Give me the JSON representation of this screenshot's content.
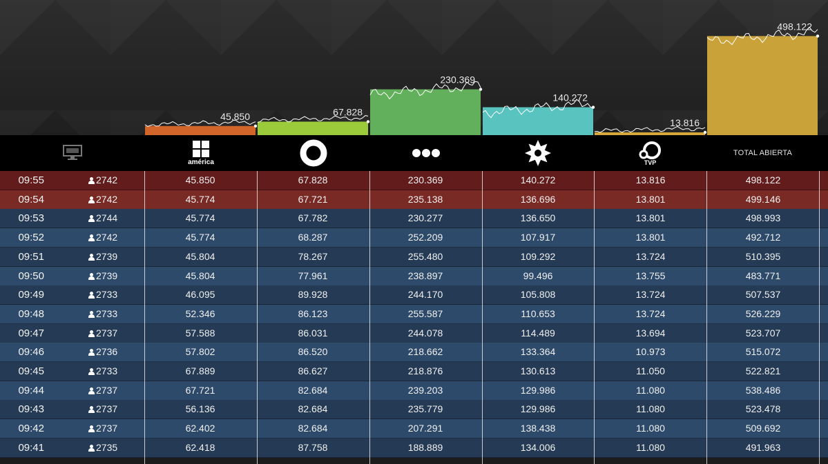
{
  "top_chart": {
    "type": "bar",
    "series_labels": [
      "45.850",
      "67.828",
      "230.369",
      "140.272",
      "13.816",
      "498.122"
    ],
    "values": [
      45.85,
      67.828,
      230.369,
      140.272,
      13.816,
      498.122
    ],
    "colors": [
      "#d2652a",
      "#9bcb3a",
      "#62b05c",
      "#58c3bf",
      "#d6a93a",
      "#c9a23a"
    ]
  },
  "header": {
    "tv_icon": "tv-icon",
    "channels": [
      {
        "icon": "america-logo-icon",
        "text": "américa"
      },
      {
        "icon": "ring-logo-icon",
        "text": ""
      },
      {
        "icon": "three-dots-logo-icon",
        "text": ""
      },
      {
        "icon": "sun-gear-logo-icon",
        "text": ""
      },
      {
        "icon": "tvp-logo-icon",
        "text": "TVP"
      }
    ],
    "total_label": "TOTAL ABIERTA"
  },
  "rows": [
    {
      "time": "09:55",
      "viewers": "2742",
      "v": [
        "45.850",
        "67.828",
        "230.369",
        "140.272",
        "13.816",
        "498.122"
      ]
    },
    {
      "time": "09:54",
      "viewers": "2742",
      "v": [
        "45.774",
        "67.721",
        "235.138",
        "136.696",
        "13.801",
        "499.146"
      ]
    },
    {
      "time": "09:53",
      "viewers": "2744",
      "v": [
        "45.774",
        "67.782",
        "230.277",
        "136.650",
        "13.801",
        "498.993"
      ]
    },
    {
      "time": "09:52",
      "viewers": "2742",
      "v": [
        "45.774",
        "68.287",
        "252.209",
        "107.917",
        "13.801",
        "492.712"
      ]
    },
    {
      "time": "09:51",
      "viewers": "2739",
      "v": [
        "45.804",
        "78.267",
        "255.480",
        "109.292",
        "13.724",
        "510.395"
      ]
    },
    {
      "time": "09:50",
      "viewers": "2739",
      "v": [
        "45.804",
        "77.961",
        "238.897",
        "99.496",
        "13.755",
        "483.771"
      ]
    },
    {
      "time": "09:49",
      "viewers": "2733",
      "v": [
        "46.095",
        "89.928",
        "244.170",
        "105.808",
        "13.724",
        "507.537"
      ]
    },
    {
      "time": "09:48",
      "viewers": "2733",
      "v": [
        "52.346",
        "86.123",
        "255.587",
        "110.653",
        "13.724",
        "526.229"
      ]
    },
    {
      "time": "09:47",
      "viewers": "2737",
      "v": [
        "57.588",
        "86.031",
        "244.078",
        "114.489",
        "13.694",
        "523.707"
      ]
    },
    {
      "time": "09:46",
      "viewers": "2736",
      "v": [
        "57.802",
        "86.520",
        "218.662",
        "133.364",
        "10.973",
        "515.072"
      ]
    },
    {
      "time": "09:45",
      "viewers": "2733",
      "v": [
        "67.889",
        "86.627",
        "218.876",
        "130.613",
        "11.050",
        "522.821"
      ]
    },
    {
      "time": "09:44",
      "viewers": "2737",
      "v": [
        "67.721",
        "82.684",
        "239.203",
        "129.986",
        "11.080",
        "538.486"
      ]
    },
    {
      "time": "09:43",
      "viewers": "2737",
      "v": [
        "56.136",
        "82.684",
        "235.779",
        "129.986",
        "11.080",
        "523.478"
      ]
    },
    {
      "time": "09:42",
      "viewers": "2737",
      "v": [
        "62.402",
        "82.684",
        "207.291",
        "138.438",
        "11.080",
        "509.692"
      ]
    },
    {
      "time": "09:41",
      "viewers": "2735",
      "v": [
        "62.418",
        "87.758",
        "188.889",
        "134.006",
        "11.080",
        "491.963"
      ]
    }
  ]
}
